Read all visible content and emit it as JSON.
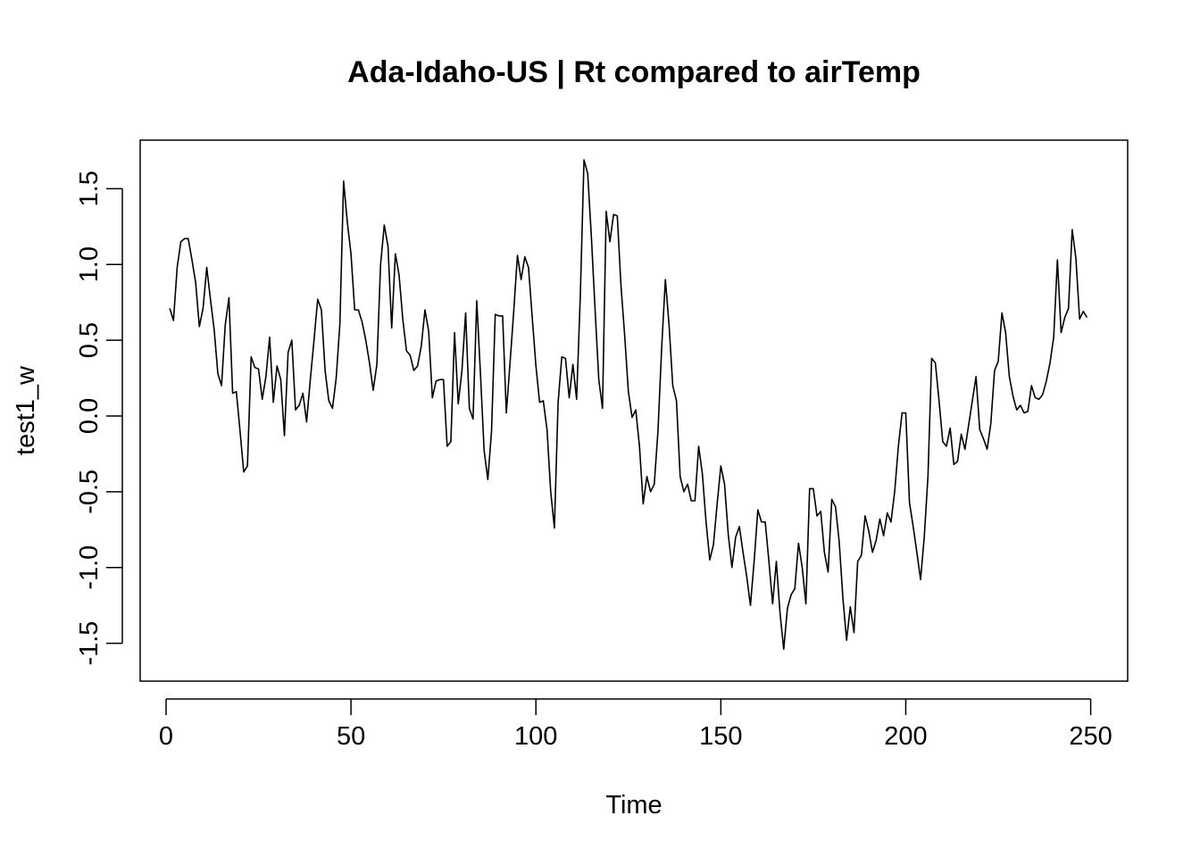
{
  "chart_data": {
    "type": "line",
    "title": "Ada-Idaho-US | Rt compared to airTemp",
    "xlabel": "Time",
    "ylabel": "test1_w",
    "xlim": [
      -7,
      260
    ],
    "ylim": [
      -1.75,
      1.82
    ],
    "x_ticks": [
      0,
      50,
      100,
      150,
      200,
      250
    ],
    "x_tick_labels": [
      "0",
      "50",
      "100",
      "150",
      "200",
      "250"
    ],
    "y_ticks": [
      -1.5,
      -1.0,
      -0.5,
      0.0,
      0.5,
      1.0,
      1.5
    ],
    "y_tick_labels": [
      "-1.5",
      "-1.0",
      "-0.5",
      "0.0",
      "0.5",
      "1.0",
      "1.5"
    ],
    "grid": false,
    "line_color": "#000000",
    "series": [
      {
        "x_start": 1,
        "values": [
          0.71,
          0.63,
          0.98,
          1.15,
          1.17,
          1.17,
          1.03,
          0.88,
          0.59,
          0.71,
          0.98,
          0.77,
          0.57,
          0.28,
          0.2,
          0.6,
          0.78,
          0.15,
          0.16,
          -0.1,
          -0.37,
          -0.33,
          0.39,
          0.32,
          0.31,
          0.11,
          0.26,
          0.52,
          0.09,
          0.33,
          0.24,
          -0.13,
          0.42,
          0.5,
          0.04,
          0.07,
          0.15,
          -0.04,
          0.24,
          0.5,
          0.77,
          0.7,
          0.3,
          0.1,
          0.05,
          0.25,
          0.61,
          1.55,
          1.28,
          1.07,
          0.7,
          0.7,
          0.62,
          0.5,
          0.35,
          0.17,
          0.34,
          1.0,
          1.26,
          1.12,
          0.58,
          1.07,
          0.93,
          0.64,
          0.43,
          0.4,
          0.3,
          0.33,
          0.46,
          0.7,
          0.56,
          0.12,
          0.23,
          0.24,
          0.24,
          -0.2,
          -0.17,
          0.55,
          0.08,
          0.3,
          0.68,
          0.05,
          -0.02,
          0.76,
          0.28,
          -0.23,
          -0.42,
          -0.1,
          0.67,
          0.66,
          0.66,
          0.02,
          0.35,
          0.69,
          1.06,
          0.9,
          1.05,
          0.98,
          0.65,
          0.33,
          0.09,
          0.1,
          -0.09,
          -0.5,
          -0.74,
          0.09,
          0.39,
          0.38,
          0.12,
          0.34,
          0.11,
          0.79,
          1.69,
          1.6,
          1.18,
          0.7,
          0.24,
          0.05,
          1.35,
          1.15,
          1.33,
          1.32,
          0.86,
          0.53,
          0.16,
          -0.01,
          0.04,
          -0.2,
          -0.58,
          -0.4,
          -0.5,
          -0.45,
          -0.1,
          0.45,
          0.9,
          0.6,
          0.2,
          0.1,
          -0.4,
          -0.5,
          -0.45,
          -0.56,
          -0.56,
          -0.2,
          -0.38,
          -0.7,
          -0.95,
          -0.85,
          -0.58,
          -0.33,
          -0.45,
          -0.78,
          -1.0,
          -0.8,
          -0.73,
          -0.9,
          -1.06,
          -1.25,
          -0.96,
          -0.62,
          -0.7,
          -0.7,
          -0.96,
          -1.24,
          -0.96,
          -1.3,
          -1.54,
          -1.27,
          -1.18,
          -1.14,
          -0.84,
          -1.0,
          -1.24,
          -0.48,
          -0.48,
          -0.66,
          -0.63,
          -0.9,
          -1.03,
          -0.55,
          -0.6,
          -0.83,
          -1.2,
          -1.48,
          -1.26,
          -1.43,
          -0.96,
          -0.92,
          -0.66,
          -0.76,
          -0.9,
          -0.82,
          -0.68,
          -0.79,
          -0.64,
          -0.7,
          -0.5,
          -0.2,
          0.02,
          0.02,
          -0.57,
          -0.73,
          -0.9,
          -1.08,
          -0.8,
          -0.4,
          0.38,
          0.35,
          0.1,
          -0.17,
          -0.2,
          -0.08,
          -0.32,
          -0.3,
          -0.12,
          -0.22,
          -0.06,
          0.1,
          0.26,
          -0.09,
          -0.15,
          -0.22,
          -0.05,
          0.3,
          0.36,
          0.68,
          0.55,
          0.26,
          0.13,
          0.04,
          0.07,
          0.02,
          0.03,
          0.2,
          0.12,
          0.11,
          0.14,
          0.23,
          0.35,
          0.52,
          1.03,
          0.55,
          0.65,
          0.71,
          1.23,
          1.04,
          0.64,
          0.69,
          0.65
        ]
      }
    ]
  }
}
